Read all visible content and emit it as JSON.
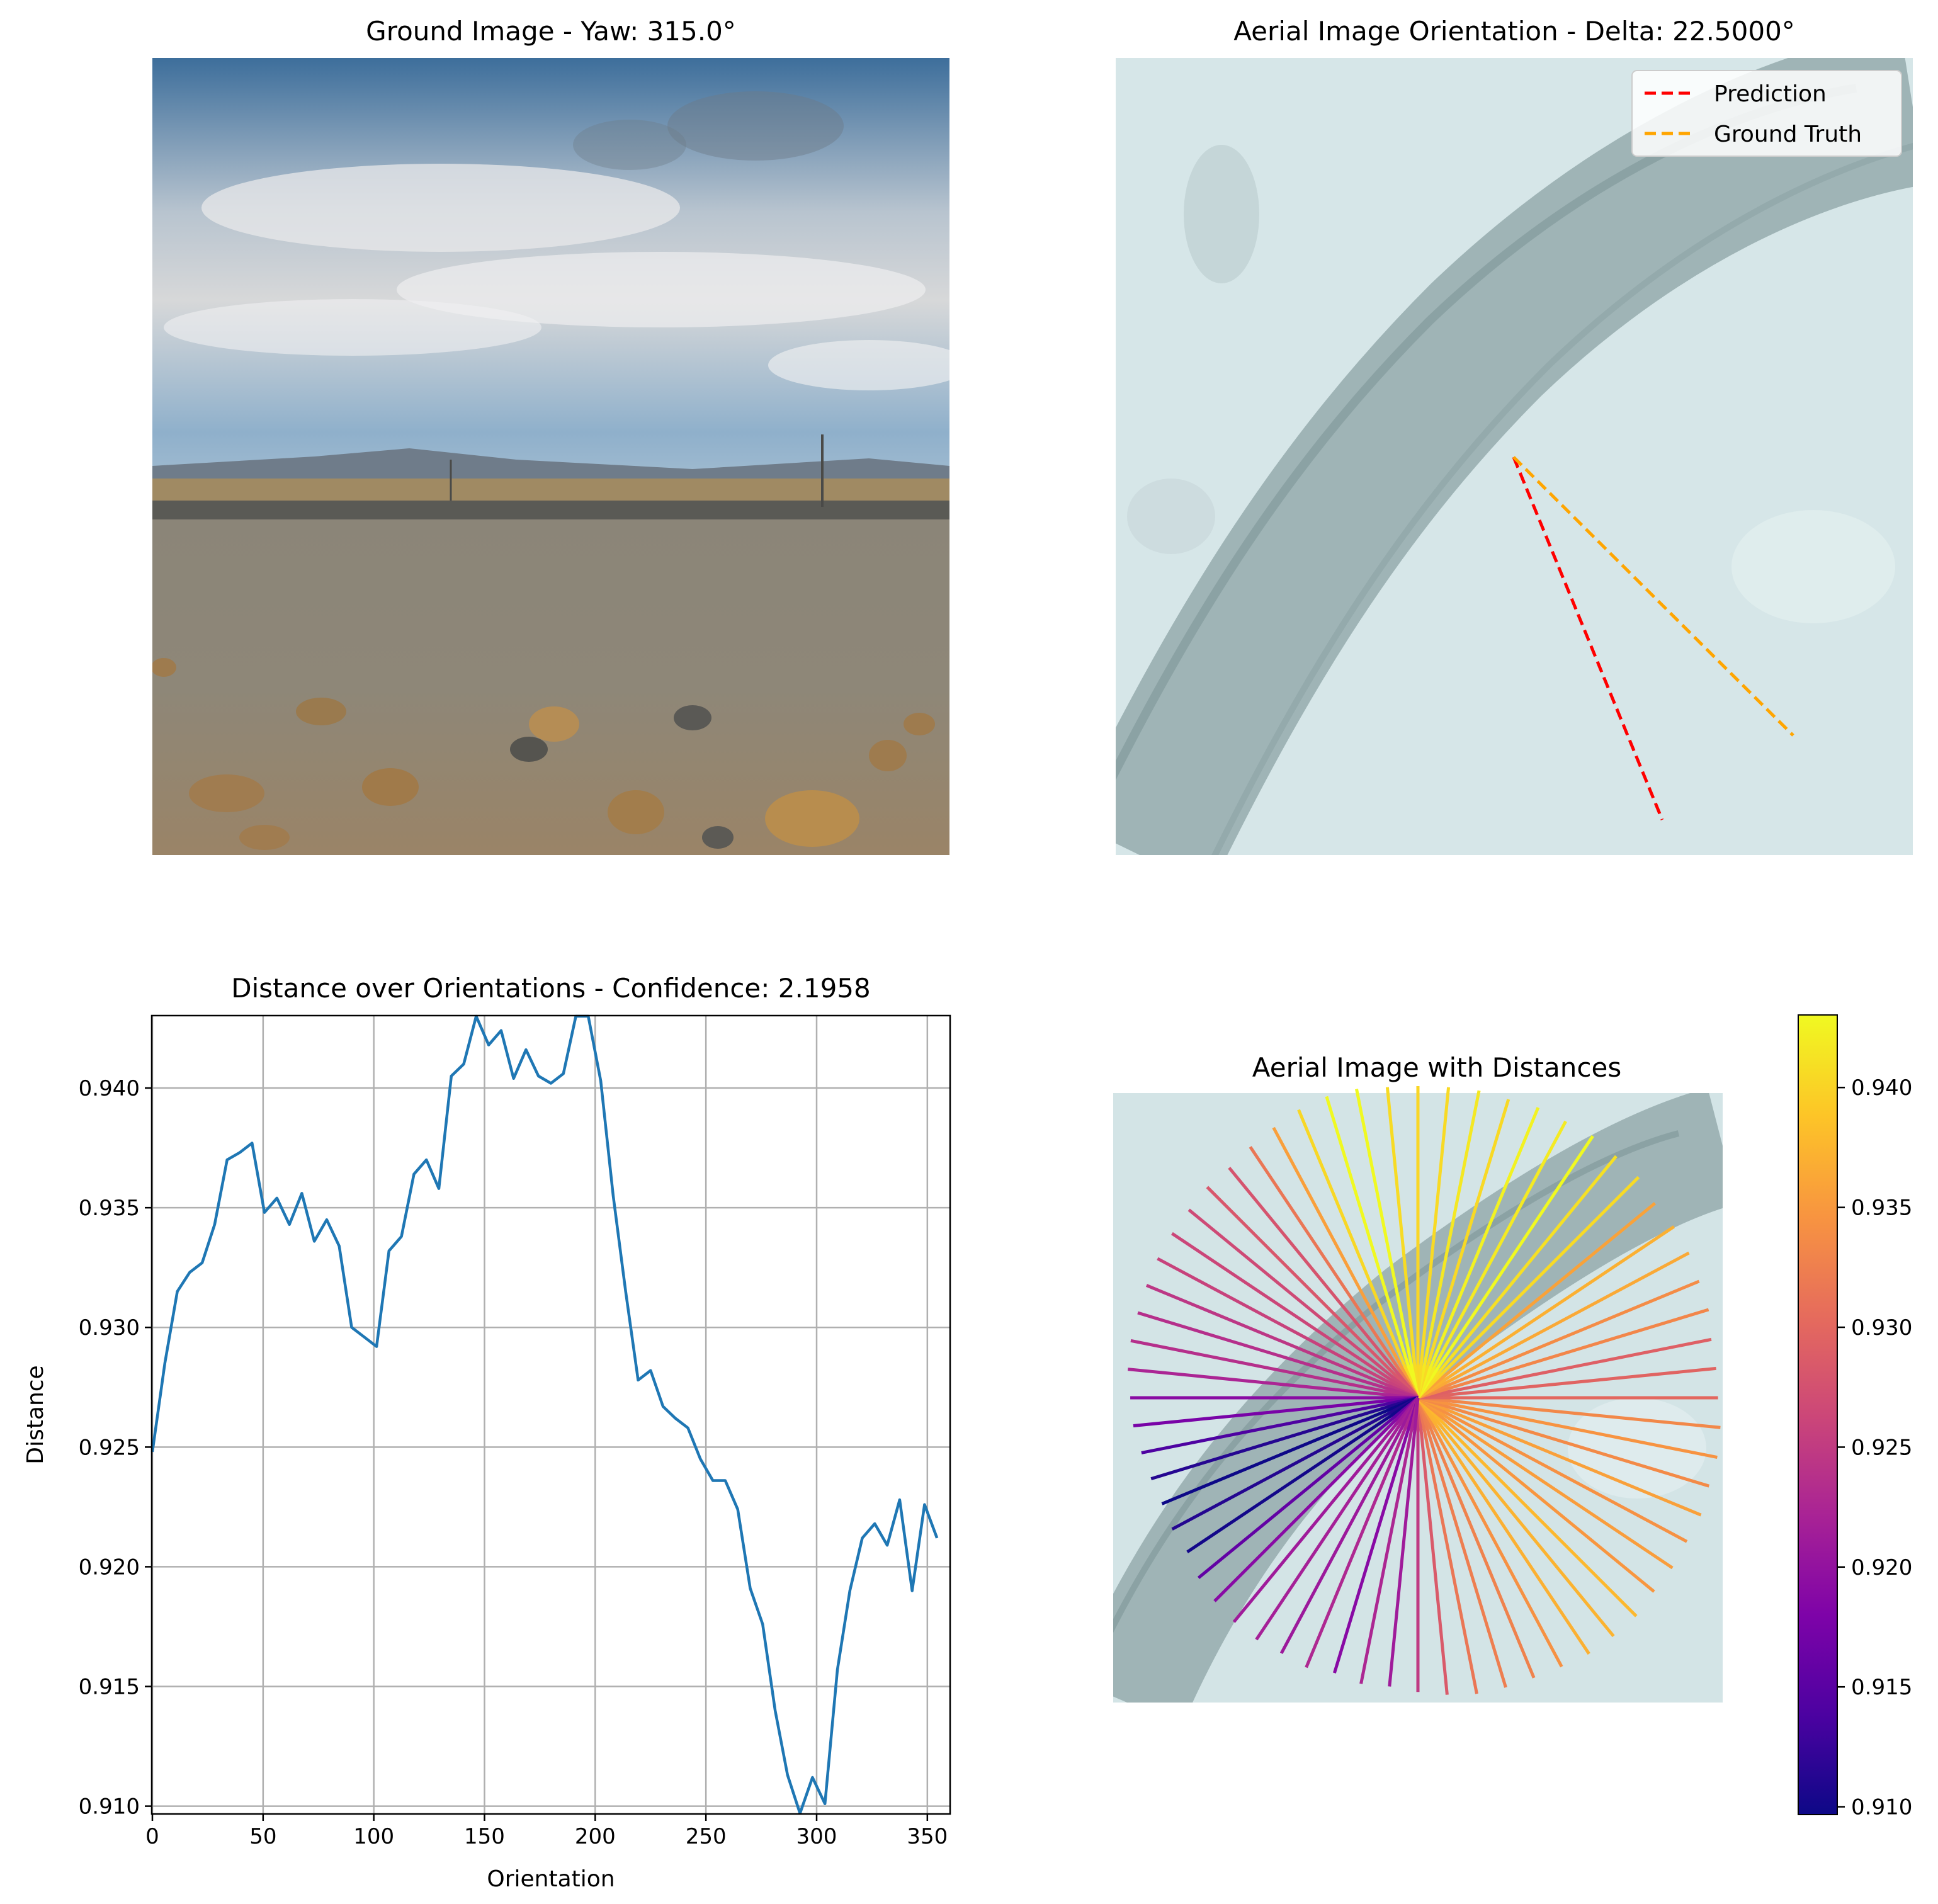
{
  "panels": {
    "ground": {
      "title": "Ground Image - Yaw: 315.0°"
    },
    "aerial": {
      "title": "Aerial Image Orientation - Delta: 22.5000°",
      "legend": [
        {
          "label": "Prediction",
          "color": "#ff0000"
        },
        {
          "label": "Ground Truth",
          "color": "#ffa500"
        }
      ]
    },
    "distance_plot": {
      "title": "Distance over Orientations - Confidence: 2.1958"
    },
    "aerial_distances": {
      "title": "Aerial Image with Distances"
    }
  },
  "colors": {
    "line": "#1f77b4",
    "grid": "#b0b0b0",
    "colormap": "plasma"
  },
  "chart_data": [
    {
      "type": "line",
      "title": "Distance over Orientations - Confidence: 2.1958",
      "xlabel": "Orientation",
      "ylabel": "Distance",
      "xlim": [
        0,
        360
      ],
      "ylim": [
        0.9097,
        0.943
      ],
      "grid": true,
      "xticks": [
        "0",
        "50",
        "100",
        "150",
        "200",
        "250",
        "300",
        "350"
      ],
      "yticks": [
        "0.910",
        "0.915",
        "0.920",
        "0.925",
        "0.930",
        "0.935",
        "0.940"
      ],
      "x": [
        0,
        5.625,
        11.25,
        16.875,
        22.5,
        28.125,
        33.75,
        39.375,
        45,
        50.625,
        56.25,
        61.875,
        67.5,
        73.125,
        78.75,
        84.375,
        90,
        95.625,
        101.25,
        106.875,
        112.5,
        118.125,
        123.75,
        129.375,
        135,
        140.625,
        146.25,
        151.875,
        157.5,
        163.125,
        168.75,
        174.375,
        180,
        185.625,
        191.25,
        196.875,
        202.5,
        208.125,
        213.75,
        219.375,
        225,
        230.625,
        236.25,
        241.875,
        247.5,
        253.125,
        258.75,
        264.375,
        270,
        275.625,
        281.25,
        286.875,
        292.5,
        298.125,
        303.75,
        309.375,
        315,
        320.625,
        326.25,
        331.875,
        337.5,
        343.125,
        348.75,
        354.375
      ],
      "values": [
        0.9248,
        0.9285,
        0.9315,
        0.9323,
        0.9327,
        0.9343,
        0.937,
        0.9373,
        0.9377,
        0.9348,
        0.9354,
        0.9343,
        0.9356,
        0.9336,
        0.9345,
        0.9334,
        0.93,
        0.9296,
        0.9292,
        0.9332,
        0.9338,
        0.9364,
        0.937,
        0.9358,
        0.9405,
        0.941,
        0.943,
        0.9418,
        0.9424,
        0.9404,
        0.9416,
        0.9405,
        0.9402,
        0.9406,
        0.943,
        0.943,
        0.9403,
        0.9355,
        0.9315,
        0.9278,
        0.9282,
        0.9267,
        0.9262,
        0.9258,
        0.9245,
        0.9236,
        0.9236,
        0.9224,
        0.9191,
        0.9176,
        0.914,
        0.9113,
        0.9097,
        0.9112,
        0.9101,
        0.9157,
        0.919,
        0.9212,
        0.9218,
        0.9209,
        0.9228,
        0.919,
        0.9226,
        0.9212
      ]
    },
    {
      "type": "radial",
      "title": "Aerial Image with Distances",
      "colorbar": {
        "colormap": "plasma",
        "range": [
          0.9097,
          0.943
        ],
        "ticks": [
          "0.910",
          "0.915",
          "0.920",
          "0.925",
          "0.930",
          "0.935",
          "0.940"
        ]
      }
    }
  ]
}
